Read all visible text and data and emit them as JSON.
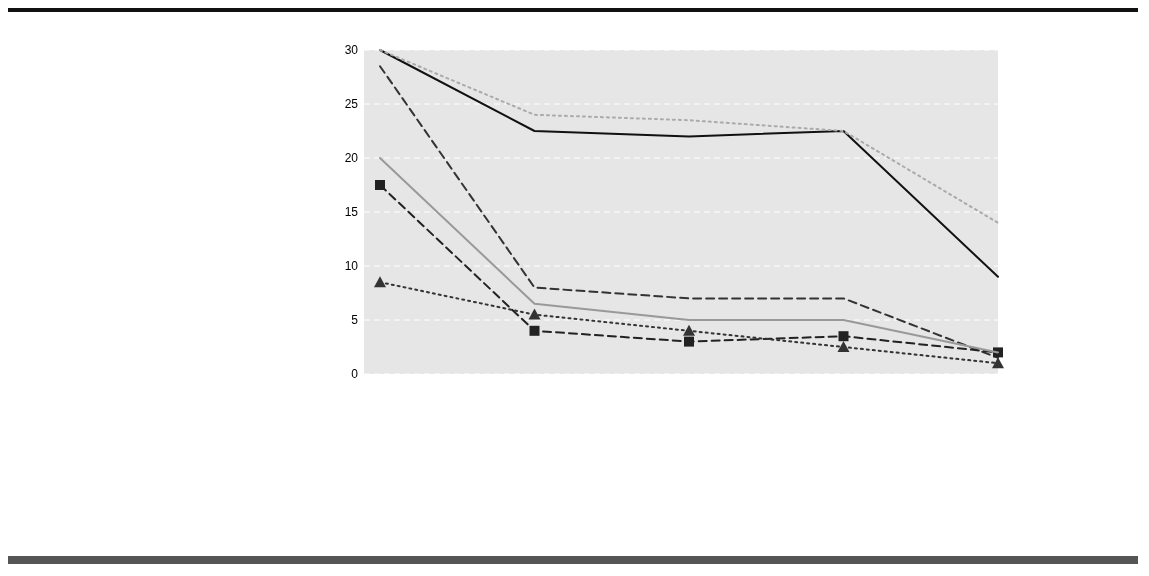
{
  "chart_data": {
    "type": "line",
    "categories": [
      null,
      null,
      null,
      null,
      null
    ],
    "ylim": [
      0,
      30
    ],
    "yticks": [
      0,
      5,
      10,
      15,
      20,
      25,
      30
    ],
    "grid": "y",
    "series": [
      {
        "color": "#111111",
        "values": [
          30,
          22.5,
          22,
          22.5,
          9
        ],
        "marker": "none",
        "line_style": "solid"
      },
      {
        "color": "#aaaaaa",
        "values": [
          30,
          24,
          23.5,
          22.5,
          14
        ],
        "marker": "none",
        "line_style": "dotted"
      },
      {
        "color": "#333333",
        "values": [
          28.5,
          8,
          7,
          7,
          1.5
        ],
        "marker": "none",
        "line_style": "dashed"
      },
      {
        "color": "#222222",
        "values": [
          17.5,
          4,
          3,
          3.5,
          2
        ],
        "marker": "square",
        "line_style": "dashed"
      },
      {
        "color": "#333333",
        "values": [
          8.5,
          5.5,
          4,
          2.5,
          1
        ],
        "marker": "triangle",
        "line_style": "dotted"
      },
      {
        "color": "#999999",
        "values": [
          20,
          6.5,
          5,
          5,
          2
        ],
        "marker": "none",
        "line_style": "solid"
      }
    ]
  }
}
